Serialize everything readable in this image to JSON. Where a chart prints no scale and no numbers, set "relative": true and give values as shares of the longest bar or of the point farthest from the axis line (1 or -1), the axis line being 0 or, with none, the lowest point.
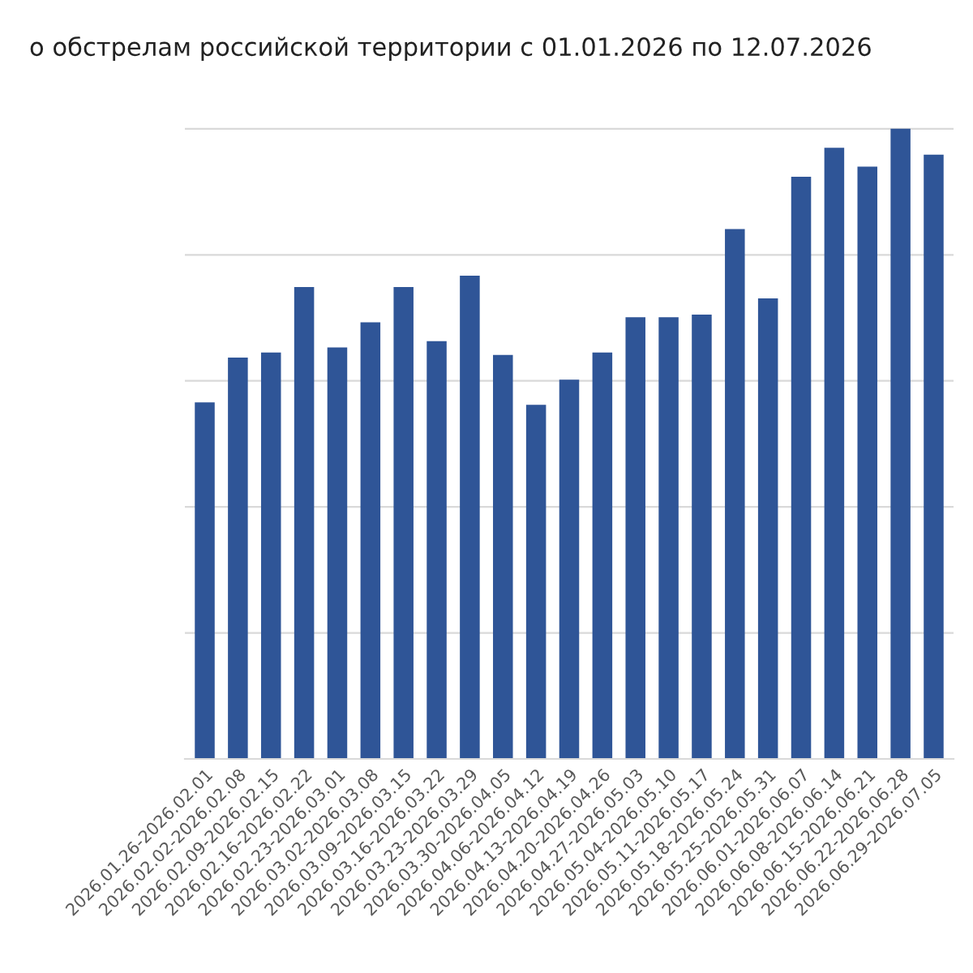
{
  "chart_data": {
    "type": "bar",
    "title": "о обстрелам российской территории с 01.01.2026 по 12.07.2026",
    "relative": true,
    "grid": "y",
    "color": "#2f5597",
    "categories": [
      "2026.01.26-2026.02.01",
      "2026.02.02-2026.02.08",
      "2026.02.09-2026.02.15",
      "2026.02.16-2026.02.22",
      "2026.02.23-2026.03.01",
      "2026.03.02-2026.03.08",
      "2026.03.09-2026.03.15",
      "2026.03.16-2026.03.22",
      "2026.03.23-2026.03.29",
      "2026.03.30-2026.04.05",
      "2026.04.06-2026.04.12",
      "2026.04.13-2026.04.19",
      "2026.04.20-2026.04.26",
      "2026.04.27-2026.05.03",
      "2026.05.04-2026.05.10",
      "2026.05.11-2026.05.17",
      "2026.05.18-2026.05.24",
      "2026.05.25-2026.05.31",
      "2026.06.01-2026.06.07",
      "2026.06.08-2026.06.14",
      "2026.06.15-2026.06.21",
      "2026.06.22-2026.06.28",
      "2026.06.29-2026.07.05"
    ],
    "values": [
      0.566,
      0.637,
      0.645,
      0.749,
      0.653,
      0.693,
      0.749,
      0.663,
      0.767,
      0.641,
      0.562,
      0.602,
      0.645,
      0.701,
      0.701,
      0.705,
      0.841,
      0.731,
      0.924,
      0.97,
      0.94,
      1,
      0.959
    ]
  }
}
